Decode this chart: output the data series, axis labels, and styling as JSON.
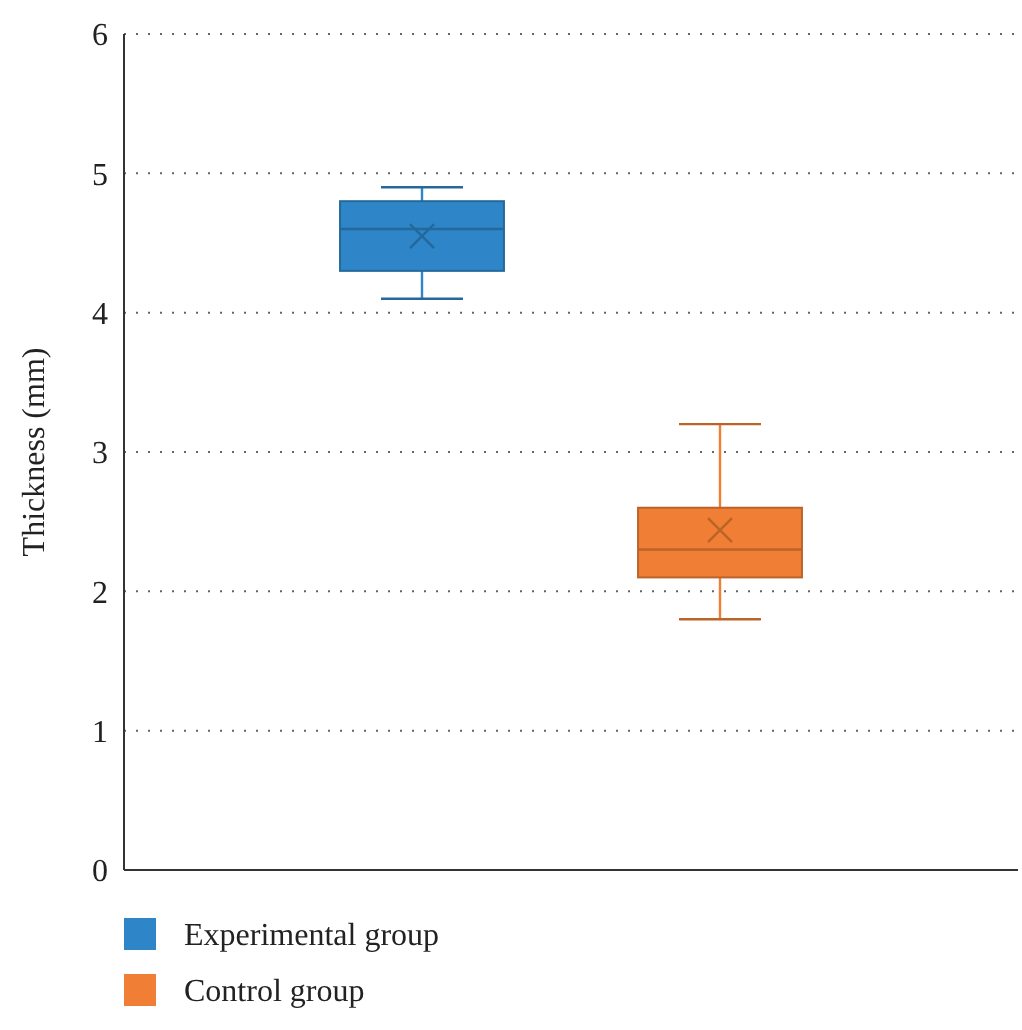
{
  "chart_data": {
    "type": "box",
    "ylabel": "Thickness (mm)",
    "categories": [
      null
    ],
    "ylim": [
      0,
      6
    ],
    "yticks": [
      0,
      1,
      2,
      3,
      4,
      5,
      6
    ],
    "grid": "y",
    "legend": "bottom",
    "series": [
      {
        "name": "Experimental group",
        "color": "#2e86c8",
        "boxes": [
          {
            "low": 4.1,
            "q1": 4.3,
            "median": 4.6,
            "q3": 4.8,
            "high": 4.9,
            "mean": 4.55
          }
        ]
      },
      {
        "name": "Control group",
        "color": "#f07f35",
        "boxes": [
          {
            "low": 1.8,
            "q1": 2.1,
            "median": 2.3,
            "q3": 2.6,
            "high": 3.2,
            "mean": 2.44
          }
        ]
      }
    ]
  }
}
